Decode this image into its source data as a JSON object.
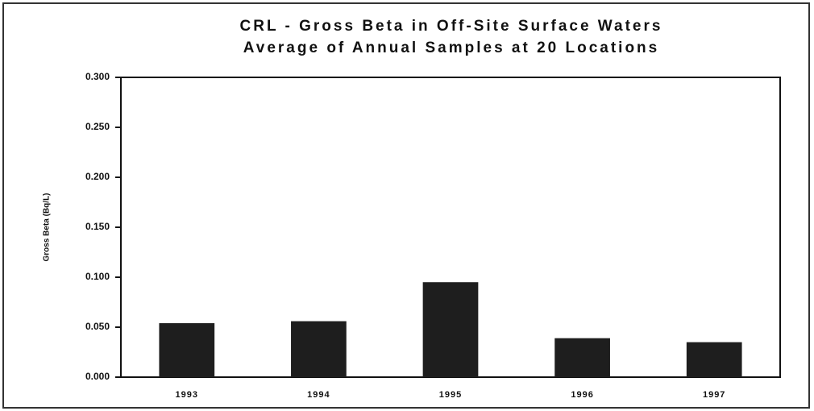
{
  "chart_data": {
    "type": "bar",
    "title": [
      "CRL - Gross Beta in Off-Site Surface  Waters",
      "Average of Annual Samples at 20 Locations"
    ],
    "y_label": "Gross Beta (Bq/L)",
    "categories": [
      "1993",
      "1994",
      "1995",
      "1996",
      "1997"
    ],
    "values": [
      0.054,
      0.056,
      0.095,
      0.039,
      0.035
    ],
    "color": "#1e1e1e",
    "ylim": [
      0,
      0.3
    ],
    "yticks": [
      {
        "value": 0,
        "label": "0.000"
      },
      {
        "value": 0.05,
        "label": "0.050"
      },
      {
        "value": 0.1,
        "label": "0.100"
      },
      {
        "value": 0.15,
        "label": "0.150"
      },
      {
        "value": 0.2,
        "label": "0.200"
      },
      {
        "value": 0.25,
        "label": "0.250"
      },
      {
        "value": 0.3,
        "label": "0.300"
      }
    ],
    "grid": false
  }
}
